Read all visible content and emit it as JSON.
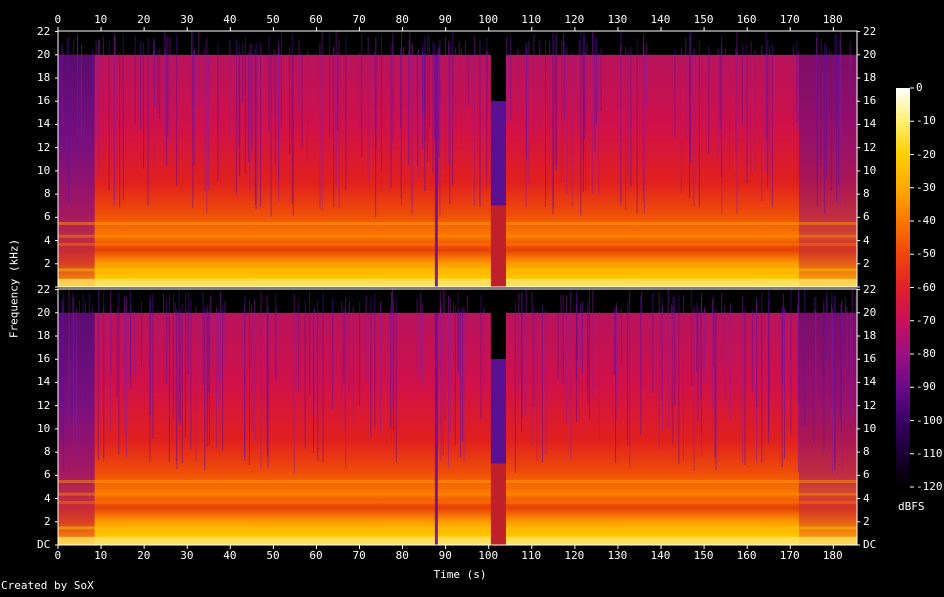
{
  "chart_data": {
    "type": "heatmap",
    "subtype": "spectrogram",
    "generator_credit": "Created by SoX",
    "xlabel": "Time (s)",
    "ylabel": "Frequency (kHz)",
    "x_ticks": [
      0,
      10,
      20,
      30,
      40,
      50,
      60,
      70,
      80,
      90,
      100,
      110,
      120,
      130,
      140,
      150,
      160,
      170,
      180
    ],
    "xlim": [
      0,
      185.5
    ],
    "y_ticks": [
      "DC",
      "2",
      "4",
      "6",
      "8",
      "10",
      "12",
      "14",
      "16",
      "18",
      "20",
      "22"
    ],
    "ylim_khz": [
      0,
      22.05
    ],
    "channels": 2,
    "lowpass_cutoff_khz": 20,
    "gap_segment_s": [
      100.5,
      104
    ],
    "dropout_s": [
      87.5,
      88
    ],
    "fade_in_s": [
      0,
      8.5
    ],
    "fade_out_s": [
      172,
      185.5
    ],
    "colorbar": {
      "unit": "dBFS",
      "ticks": [
        0,
        -10,
        -20,
        -30,
        -40,
        -50,
        -60,
        -70,
        -80,
        -90,
        -100,
        -110,
        -120
      ],
      "range": [
        -120,
        0
      ]
    },
    "colors": {
      "background": "#000000",
      "text": "#ffffff",
      "border": "#ffffff",
      "colormap": [
        "#000000",
        "#1a0033",
        "#3a0065",
        "#6a0a8a",
        "#9b0f82",
        "#c8105a",
        "#e3202a",
        "#f0460c",
        "#fa7800",
        "#ffa800",
        "#ffd000",
        "#fff070",
        "#ffffff"
      ]
    }
  }
}
